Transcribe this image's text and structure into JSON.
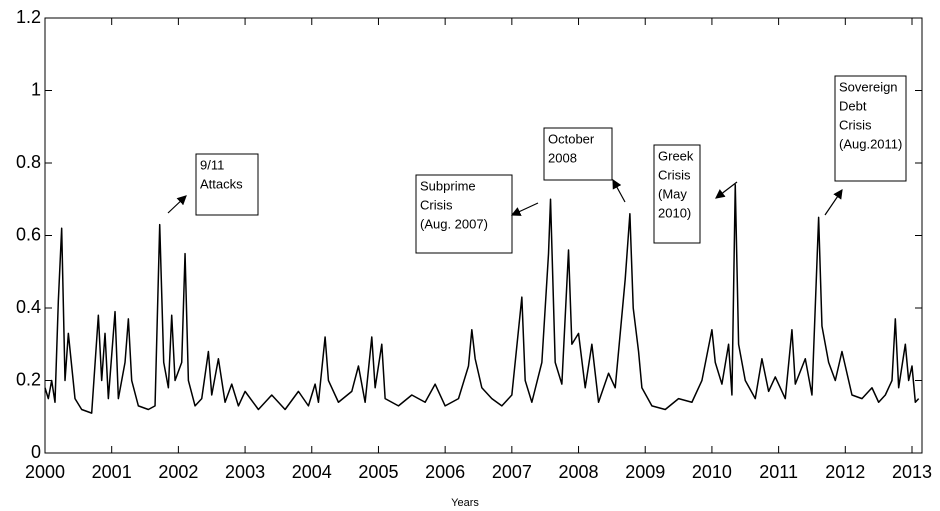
{
  "chart_data": {
    "type": "line",
    "x_label": "Years",
    "x": [
      2000.0,
      2000.05,
      2000.1,
      2000.15,
      2000.2,
      2000.25,
      2000.3,
      2000.35,
      2000.45,
      2000.55,
      2000.7,
      2000.8,
      2000.85,
      2000.9,
      2000.95,
      2001.05,
      2001.1,
      2001.2,
      2001.25,
      2001.3,
      2001.4,
      2001.55,
      2001.65,
      2001.72,
      2001.78,
      2001.85,
      2001.9,
      2001.95,
      2002.05,
      2002.1,
      2002.15,
      2002.25,
      2002.35,
      2002.45,
      2002.5,
      2002.6,
      2002.7,
      2002.8,
      2002.9,
      2003.0,
      2003.2,
      2003.4,
      2003.6,
      2003.8,
      2003.95,
      2004.05,
      2004.1,
      2004.2,
      2004.25,
      2004.4,
      2004.6,
      2004.7,
      2004.8,
      2004.9,
      2004.95,
      2005.05,
      2005.1,
      2005.3,
      2005.5,
      2005.7,
      2005.85,
      2006.0,
      2006.2,
      2006.35,
      2006.4,
      2006.45,
      2006.55,
      2006.7,
      2006.85,
      2007.0,
      2007.15,
      2007.2,
      2007.3,
      2007.45,
      2007.55,
      2007.58,
      2007.65,
      2007.75,
      2007.85,
      2007.9,
      2008.0,
      2008.1,
      2008.2,
      2008.3,
      2008.45,
      2008.55,
      2008.7,
      2008.77,
      2008.82,
      2008.9,
      2008.95,
      2009.1,
      2009.3,
      2009.5,
      2009.7,
      2009.85,
      2010.0,
      2010.05,
      2010.15,
      2010.25,
      2010.3,
      2010.35,
      2010.4,
      2010.5,
      2010.65,
      2010.75,
      2010.85,
      2010.95,
      2011.1,
      2011.2,
      2011.25,
      2011.4,
      2011.5,
      2011.6,
      2011.65,
      2011.75,
      2011.85,
      2011.95,
      2012.1,
      2012.25,
      2012.4,
      2012.5,
      2012.6,
      2012.7,
      2012.75,
      2012.8,
      2012.9,
      2012.95,
      2013.0,
      2013.05,
      2013.1
    ],
    "series": [
      {
        "color": "#000000",
        "values": [
          0.18,
          0.15,
          0.2,
          0.14,
          0.42,
          0.62,
          0.2,
          0.33,
          0.15,
          0.12,
          0.11,
          0.38,
          0.2,
          0.33,
          0.15,
          0.39,
          0.15,
          0.25,
          0.37,
          0.2,
          0.13,
          0.12,
          0.13,
          0.63,
          0.25,
          0.18,
          0.38,
          0.2,
          0.25,
          0.55,
          0.2,
          0.13,
          0.15,
          0.28,
          0.16,
          0.26,
          0.14,
          0.19,
          0.13,
          0.17,
          0.12,
          0.16,
          0.12,
          0.17,
          0.13,
          0.19,
          0.14,
          0.32,
          0.2,
          0.14,
          0.17,
          0.24,
          0.14,
          0.32,
          0.18,
          0.3,
          0.15,
          0.13,
          0.16,
          0.14,
          0.19,
          0.13,
          0.15,
          0.24,
          0.34,
          0.26,
          0.18,
          0.15,
          0.13,
          0.16,
          0.43,
          0.2,
          0.14,
          0.25,
          0.55,
          0.7,
          0.25,
          0.19,
          0.56,
          0.3,
          0.33,
          0.18,
          0.3,
          0.14,
          0.22,
          0.18,
          0.48,
          0.66,
          0.4,
          0.28,
          0.18,
          0.13,
          0.12,
          0.15,
          0.14,
          0.2,
          0.34,
          0.25,
          0.19,
          0.3,
          0.16,
          0.74,
          0.3,
          0.2,
          0.15,
          0.26,
          0.17,
          0.21,
          0.15,
          0.34,
          0.19,
          0.26,
          0.16,
          0.65,
          0.35,
          0.25,
          0.2,
          0.28,
          0.16,
          0.15,
          0.18,
          0.14,
          0.16,
          0.2,
          0.37,
          0.18,
          0.3,
          0.2,
          0.24,
          0.14,
          0.15
        ]
      }
    ],
    "xlim": [
      2000,
      2013.15
    ],
    "xticks": [
      2000,
      2001,
      2002,
      2003,
      2004,
      2005,
      2006,
      2007,
      2008,
      2009,
      2010,
      2011,
      2012,
      2013
    ],
    "ylim": [
      0,
      1.2
    ],
    "yticks": [
      0,
      0.2,
      0.4,
      0.6,
      0.8,
      1,
      1.2
    ],
    "annotations": [
      {
        "lines": [
          "9/11",
          "Attacks"
        ]
      },
      {
        "lines": [
          "Subprime",
          "Crisis",
          "(Aug. 2007)"
        ]
      },
      {
        "lines": [
          "October",
          "2008"
        ]
      },
      {
        "lines": [
          "Greek",
          "Crisis",
          "(May",
          "2010)"
        ]
      },
      {
        "lines": [
          "Sovereign",
          "Debt",
          "Crisis",
          "(Aug.2011)"
        ]
      }
    ]
  }
}
